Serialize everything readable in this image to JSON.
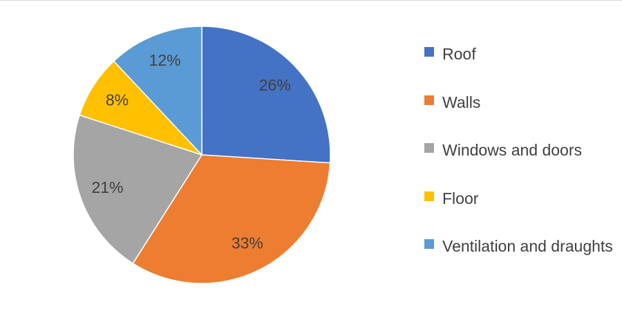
{
  "chart_data": {
    "type": "pie",
    "categories": [
      "Roof",
      "Walls",
      "Windows and doors",
      "Floor",
      "Ventilation and draughts"
    ],
    "values": [
      26,
      33,
      21,
      8,
      12
    ],
    "value_labels": [
      "26%",
      "33%",
      "21%",
      "8%",
      "12%"
    ],
    "colors": [
      "#4472c4",
      "#ed7d31",
      "#a5a5a5",
      "#ffc000",
      "#5b9bd5"
    ],
    "legend": "right"
  }
}
